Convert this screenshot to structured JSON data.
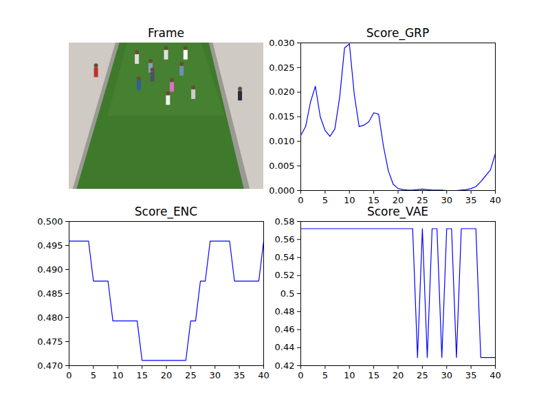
{
  "chart_data": [
    {
      "type": "image",
      "title": "Frame"
    },
    {
      "type": "line",
      "title": "Score_GRP",
      "color": "#0000ff",
      "x": [
        0,
        1,
        2,
        3,
        4,
        5,
        6,
        7,
        8,
        9,
        10,
        11,
        12,
        13,
        14,
        15,
        16,
        17,
        18,
        19,
        20,
        21,
        22,
        23,
        24,
        25,
        26,
        27,
        28,
        29,
        30,
        31,
        32,
        33,
        34,
        35,
        36,
        37,
        38,
        39,
        40
      ],
      "values": [
        0.0112,
        0.013,
        0.018,
        0.0212,
        0.015,
        0.0122,
        0.011,
        0.0125,
        0.019,
        0.029,
        0.0298,
        0.0195,
        0.013,
        0.0133,
        0.014,
        0.0158,
        0.0155,
        0.009,
        0.004,
        0.0013,
        0.0004,
        0.0002,
        0.0001,
        0.0001,
        0.0002,
        0.0003,
        0.0002,
        0.0001,
        0.0001,
        0.0001,
        0.0,
        0.0,
        0.0,
        0.0001,
        0.0002,
        0.0004,
        0.0008,
        0.0018,
        0.003,
        0.0042,
        0.0075
      ],
      "xlim": [
        0,
        40
      ],
      "xticks": [
        0,
        5,
        10,
        15,
        20,
        25,
        30,
        35,
        40
      ],
      "ylim": [
        0,
        0.03
      ],
      "yticks": [
        {
          "value": 0,
          "label": "0.000"
        },
        {
          "value": 0.005,
          "label": "0.005"
        },
        {
          "value": 0.01,
          "label": "0.010"
        },
        {
          "value": 0.015,
          "label": "0.015"
        },
        {
          "value": 0.02,
          "label": "0.020"
        },
        {
          "value": 0.025,
          "label": "0.025"
        },
        {
          "value": 0.03,
          "label": "0.030"
        }
      ]
    },
    {
      "type": "line",
      "title": "Score_ENC",
      "color": "#0000ff",
      "x": [
        0,
        1,
        2,
        3,
        4,
        5,
        6,
        7,
        8,
        9,
        10,
        11,
        12,
        13,
        14,
        15,
        16,
        17,
        18,
        19,
        20,
        21,
        22,
        23,
        24,
        25,
        26,
        27,
        28,
        29,
        30,
        31,
        32,
        33,
        34,
        35,
        36,
        37,
        38,
        39,
        40
      ],
      "values": [
        0.4959,
        0.4959,
        0.4959,
        0.4959,
        0.4959,
        0.4876,
        0.4876,
        0.4876,
        0.4876,
        0.4793,
        0.4793,
        0.4793,
        0.4793,
        0.4793,
        0.4793,
        0.4711,
        0.4711,
        0.4711,
        0.4711,
        0.4711,
        0.4711,
        0.4711,
        0.4711,
        0.4711,
        0.4711,
        0.4793,
        0.4793,
        0.4876,
        0.4876,
        0.4959,
        0.4959,
        0.4959,
        0.4959,
        0.4959,
        0.4876,
        0.4876,
        0.4876,
        0.4876,
        0.4876,
        0.4876,
        0.4959
      ],
      "xlim": [
        0,
        40
      ],
      "xticks": [
        0,
        5,
        10,
        15,
        20,
        25,
        30,
        35,
        40
      ],
      "ylim": [
        0.47,
        0.5
      ],
      "yticks": [
        {
          "value": 0.47,
          "label": "0.470"
        },
        {
          "value": 0.475,
          "label": "0.475"
        },
        {
          "value": 0.48,
          "label": "0.480"
        },
        {
          "value": 0.485,
          "label": "0.485"
        },
        {
          "value": 0.49,
          "label": "0.490"
        },
        {
          "value": 0.495,
          "label": "0.495"
        },
        {
          "value": 0.5,
          "label": "0.500"
        }
      ]
    },
    {
      "type": "line",
      "title": "Score_VAE",
      "color": "#0000ff",
      "x": [
        0,
        1,
        2,
        3,
        4,
        5,
        6,
        7,
        8,
        9,
        10,
        11,
        12,
        13,
        14,
        15,
        16,
        17,
        18,
        19,
        20,
        21,
        22,
        23,
        24,
        25,
        26,
        27,
        28,
        29,
        30,
        31,
        32,
        33,
        34,
        35,
        36,
        37,
        38,
        39,
        40
      ],
      "values": [
        0.572,
        0.572,
        0.572,
        0.572,
        0.572,
        0.572,
        0.572,
        0.572,
        0.572,
        0.572,
        0.572,
        0.572,
        0.572,
        0.572,
        0.572,
        0.572,
        0.572,
        0.572,
        0.572,
        0.572,
        0.572,
        0.572,
        0.572,
        0.572,
        0.429,
        0.572,
        0.429,
        0.572,
        0.572,
        0.429,
        0.572,
        0.572,
        0.429,
        0.572,
        0.572,
        0.572,
        0.572,
        0.429,
        0.429,
        0.429,
        0.429
      ],
      "xlim": [
        0,
        40
      ],
      "xticks": [
        0,
        5,
        10,
        15,
        20,
        25,
        30,
        35,
        40
      ],
      "ylim": [
        0.42,
        0.58
      ],
      "yticks": [
        0.42,
        0.44,
        0.46,
        0.48,
        0.5,
        0.52,
        0.54,
        0.56,
        0.58
      ]
    }
  ]
}
